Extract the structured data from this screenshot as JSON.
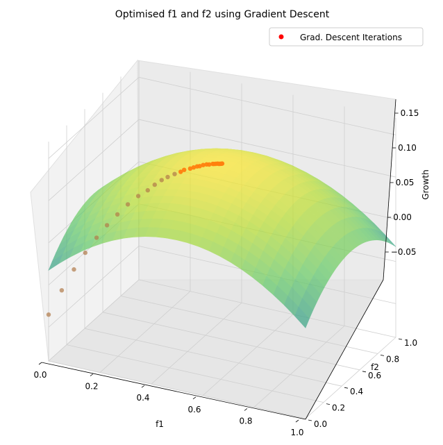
{
  "chart_data": {
    "type": "surface3d",
    "title": "Optimised f1 and f2 using Gradient Descent",
    "xlabel": "f1",
    "ylabel": "f2",
    "zlabel": "Growth",
    "xlim": [
      0,
      1
    ],
    "ylim": [
      0,
      1
    ],
    "zlim": [
      -0.09,
      0.17
    ],
    "x_ticks": [
      "0.0",
      "0.2",
      "0.4",
      "0.6",
      "0.8",
      "1.0"
    ],
    "y_ticks": [
      "0.0",
      "0.2",
      "0.4",
      "0.6",
      "0.8",
      "1.0"
    ],
    "z_ticks": [
      "−0.05",
      "0.00",
      "0.05",
      "0.10",
      "0.15"
    ],
    "grid": true,
    "colormap": "viridis",
    "surface": {
      "formula": "Growth = 0.13 - 0.28*(f1-0.5)^2 - 0.17*(f2-0.5)^2 (approximate fitted surface)",
      "opacity": 0.6
    },
    "legend": {
      "placement": "top-right",
      "entries": [
        "Grad. Descent Iterations"
      ]
    },
    "series": [
      {
        "name": "Grad. Descent Iterations",
        "color": "#ff0000",
        "points": [
          [
            0.0,
            0.0,
            -0.035
          ],
          [
            0.03,
            0.06,
            -0.01
          ],
          [
            0.06,
            0.11,
            0.012
          ],
          [
            0.09,
            0.15,
            0.03
          ],
          [
            0.12,
            0.19,
            0.046
          ],
          [
            0.15,
            0.22,
            0.06
          ],
          [
            0.18,
            0.25,
            0.072
          ],
          [
            0.21,
            0.28,
            0.083
          ],
          [
            0.24,
            0.31,
            0.092
          ],
          [
            0.27,
            0.33,
            0.099
          ],
          [
            0.29,
            0.35,
            0.105
          ],
          [
            0.31,
            0.37,
            0.11
          ],
          [
            0.33,
            0.38,
            0.114
          ],
          [
            0.35,
            0.4,
            0.117
          ],
          [
            0.37,
            0.41,
            0.12
          ],
          [
            0.38,
            0.42,
            0.122
          ],
          [
            0.4,
            0.43,
            0.124
          ],
          [
            0.41,
            0.44,
            0.125
          ],
          [
            0.42,
            0.45,
            0.126
          ],
          [
            0.43,
            0.45,
            0.127
          ],
          [
            0.44,
            0.46,
            0.128
          ],
          [
            0.45,
            0.47,
            0.1285
          ],
          [
            0.46,
            0.47,
            0.129
          ],
          [
            0.47,
            0.48,
            0.1295
          ],
          [
            0.475,
            0.48,
            0.1297
          ],
          [
            0.48,
            0.485,
            0.1298
          ],
          [
            0.485,
            0.49,
            0.1299
          ],
          [
            0.49,
            0.49,
            0.13
          ],
          [
            0.493,
            0.492,
            0.13
          ],
          [
            0.496,
            0.495,
            0.13
          ],
          [
            0.498,
            0.497,
            0.13
          ],
          [
            0.5,
            0.5,
            0.13
          ]
        ]
      }
    ]
  }
}
